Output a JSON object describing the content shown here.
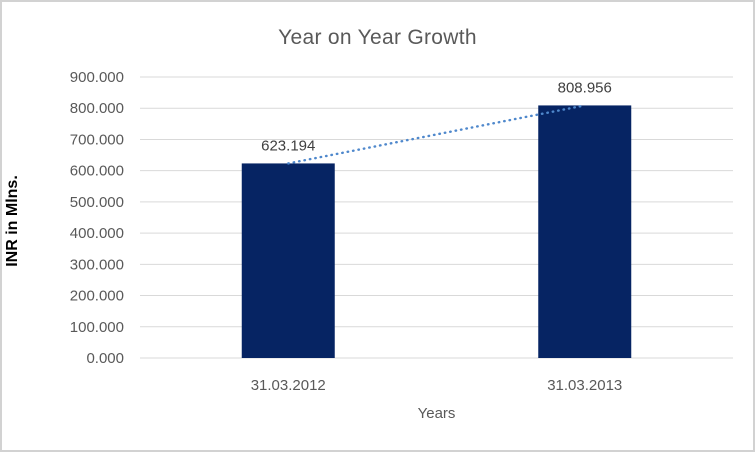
{
  "window": {
    "background": "#ffffff",
    "border_color": "#d2d2d2"
  },
  "chart_data": {
    "type": "bar",
    "title": "Year on Year Growth",
    "xlabel": "Years",
    "ylabel": "INR in Mlns.",
    "categories": [
      "31.03.2012",
      "31.03.2013"
    ],
    "values": [
      623.194,
      808.956
    ],
    "value_labels": [
      "623.194",
      "808.956"
    ],
    "ylim": [
      0,
      900
    ],
    "ytick_step": 100,
    "ytick_labels": [
      "0.000",
      "100.000",
      "200.000",
      "300.000",
      "400.000",
      "500.000",
      "600.000",
      "700.000",
      "800.000",
      "900.000"
    ],
    "grid": "horizontal",
    "legend": "none",
    "trendline": {
      "style": "dotted",
      "color": "#4f88cc",
      "connects": "bar-tops"
    },
    "colors": {
      "bar": "#062463",
      "gridline": "#d9d9d9",
      "axis_text": "#595959",
      "data_label": "#404040",
      "title_text": "#595959",
      "ylabel_text": "#000000"
    }
  }
}
